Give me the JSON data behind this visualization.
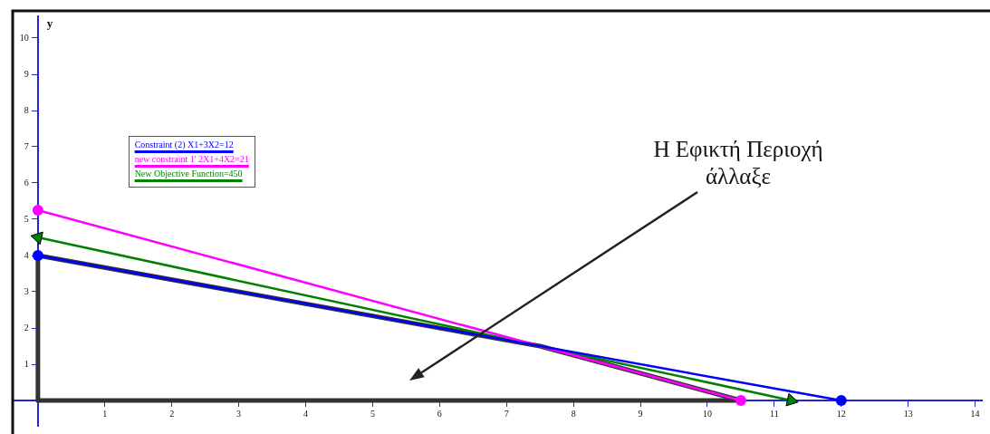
{
  "chart_data": {
    "type": "line",
    "ylabel": "y",
    "xlim": [
      -0.35,
      14.1
    ],
    "ylim": [
      -0.7,
      10.6
    ],
    "xticks": [
      1,
      2,
      3,
      4,
      5,
      6,
      7,
      8,
      9,
      10,
      11,
      12,
      13,
      14
    ],
    "yticks": [
      1,
      2,
      3,
      4,
      5,
      6,
      7,
      8,
      9,
      10
    ],
    "grid": false,
    "legend": "top left",
    "series": [
      {
        "name": "Constraint (2) X1+3X2=12",
        "color": "#0000ff",
        "x": [
          0,
          12
        ],
        "values": [
          4,
          0
        ],
        "marker": "circle"
      },
      {
        "name": "new constraint 1' 2X1+4X2=21",
        "color": "#ff00ff",
        "x": [
          0,
          10.5
        ],
        "values": [
          5.25,
          0
        ],
        "marker": "circle"
      },
      {
        "name": "New Objective Function=450",
        "color": "#008000",
        "x": [
          0,
          11.25
        ],
        "values": [
          4.5,
          0
        ],
        "marker": "triangle"
      },
      {
        "color": "#333333",
        "x": [
          0,
          7.5,
          10.5
        ],
        "values": [
          4,
          1.5,
          0
        ],
        "marker": "none"
      },
      {
        "color": "#333333",
        "x": [
          0,
          10.5
        ],
        "values": [
          0,
          0
        ],
        "marker": "none"
      },
      {
        "color": "#333333",
        "x": [
          0,
          0
        ],
        "values": [
          0,
          4
        ],
        "marker": "none"
      }
    ],
    "annotations": [
      "Η Εφικτή Περιοχή άλλαξε"
    ]
  }
}
